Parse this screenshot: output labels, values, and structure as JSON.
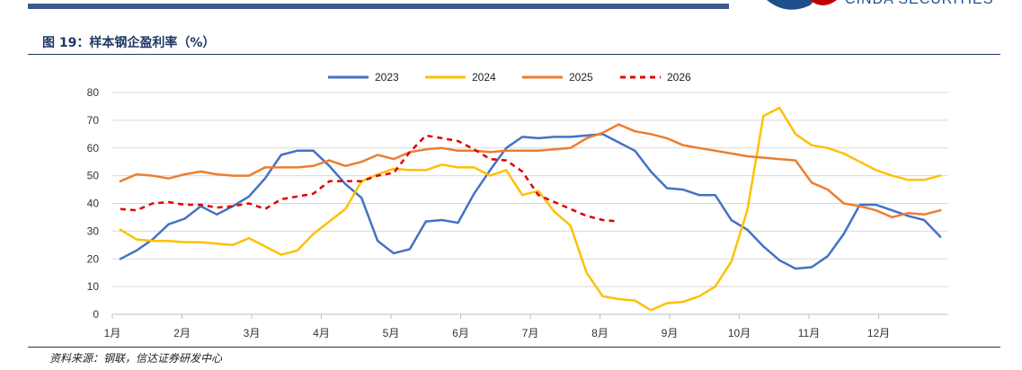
{
  "header": {
    "logo_text": "CINDA SECURITIES",
    "figure_title": "图 19：样本钢企盈利率（%）"
  },
  "footer": {
    "source": "资料来源：钢联，信达证券研发中心"
  },
  "colors": {
    "2023": "#4472c4",
    "2024": "#ffc000",
    "2025": "#ed7d31",
    "2026": "#e00000",
    "grid": "#d9d9d9",
    "rule": "#1f3864"
  },
  "chart_data": {
    "type": "line",
    "title": "",
    "xlabel": "",
    "ylabel": "",
    "ylim": [
      0,
      80
    ],
    "yticks": [
      0,
      10,
      20,
      30,
      40,
      50,
      60,
      70,
      80
    ],
    "x_tick_labels": [
      "1月",
      "2月",
      "3月",
      "4月",
      "5月",
      "6月",
      "7月",
      "8月",
      "9月",
      "10月",
      "11月",
      "12月"
    ],
    "x_points_per_year": 52,
    "grid": "horizontal",
    "legend_position": "top",
    "series": [
      {
        "name": "2023",
        "line_style": "solid",
        "values": [
          20,
          23,
          27,
          32.5,
          34.5,
          39,
          36,
          39,
          42.5,
          49,
          57.5,
          59,
          59,
          53.5,
          47,
          42,
          26.5,
          22,
          23.5,
          33.5,
          34,
          33,
          43.5,
          52,
          60,
          64,
          63.5,
          64,
          64,
          64.5,
          65,
          62,
          59,
          51.5,
          45.5,
          45,
          43,
          43,
          34,
          30.5,
          24.5,
          19.5,
          16.5,
          17,
          21,
          29,
          39.5,
          39.5,
          37.5,
          35.5,
          34,
          28
        ]
      },
      {
        "name": "2024",
        "line_style": "solid",
        "values": [
          30.5,
          27,
          26.5,
          26.5,
          26,
          26,
          25.5,
          25,
          27.5,
          24.5,
          21.5,
          23,
          29,
          33.5,
          38,
          48,
          50.5,
          52.5,
          52,
          52,
          54,
          53,
          53,
          50,
          52,
          43,
          44.5,
          37,
          32,
          15,
          6.5,
          5.5,
          5,
          1.5,
          4,
          4.5,
          6.5,
          10,
          19,
          37.5,
          71.5,
          74.5,
          65,
          61,
          60,
          58,
          55,
          52,
          50,
          48.5,
          48.5,
          50
        ]
      },
      {
        "name": "2025",
        "line_style": "solid",
        "values": [
          48,
          50.5,
          50,
          49,
          50.5,
          51.5,
          50.5,
          50,
          50,
          53,
          53,
          53,
          53.5,
          55.5,
          53.5,
          55,
          57.5,
          56,
          58.5,
          59.5,
          60,
          59,
          59,
          58.5,
          59,
          59,
          59,
          59.5,
          60,
          63.5,
          65.5,
          68.5,
          66,
          65,
          63.5,
          61,
          60,
          59,
          58,
          57,
          56.5,
          56,
          55.5,
          47.5,
          45,
          40,
          39,
          37.5,
          35,
          36.5,
          36,
          37.5
        ]
      },
      {
        "name": "2026",
        "line_style": "dashed",
        "values": [
          38,
          37.5,
          40,
          40.5,
          39.5,
          39.5,
          38.5,
          39,
          40,
          38,
          41.5,
          42.5,
          43.5,
          48,
          48,
          48,
          50,
          51,
          58.5,
          64.5,
          63.5,
          62.5,
          59.5,
          56,
          55.5,
          51.5,
          43,
          40.5,
          38,
          35.5,
          34,
          33.5
        ]
      }
    ]
  }
}
